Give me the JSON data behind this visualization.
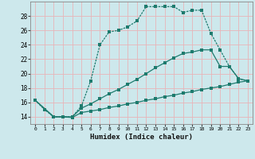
{
  "xlabel": "Humidex (Indice chaleur)",
  "xlim": [
    -0.5,
    23.5
  ],
  "ylim": [
    13.0,
    30.0
  ],
  "xticks": [
    0,
    1,
    2,
    3,
    4,
    5,
    6,
    7,
    8,
    9,
    10,
    11,
    12,
    13,
    14,
    15,
    16,
    17,
    18,
    19,
    20,
    21,
    22,
    23
  ],
  "yticks": [
    14,
    16,
    18,
    20,
    22,
    24,
    26,
    28
  ],
  "background_color": "#cde8ec",
  "grid_color": "#e8b4b8",
  "line_color": "#1e7b6e",
  "line1_x": [
    0,
    1,
    2,
    3,
    4,
    5,
    6,
    7,
    8,
    9,
    10,
    11,
    12,
    13,
    14,
    15,
    16,
    17,
    18,
    19,
    20,
    21,
    22,
    23
  ],
  "line1_y": [
    16.3,
    15.0,
    14.0,
    14.0,
    14.0,
    15.5,
    19.0,
    24.0,
    25.8,
    26.0,
    26.5,
    27.3,
    29.3,
    29.3,
    29.3,
    29.3,
    28.5,
    28.8,
    28.8,
    25.6,
    23.3,
    21.0,
    19.3,
    19.0
  ],
  "line2_x": [
    0,
    2,
    3,
    4,
    5,
    6,
    7,
    8,
    9,
    10,
    11,
    12,
    13,
    14,
    15,
    16,
    17,
    18,
    19,
    20,
    21,
    22,
    23
  ],
  "line2_y": [
    16.3,
    14.0,
    14.0,
    14.0,
    15.2,
    15.8,
    16.5,
    17.2,
    17.8,
    18.5,
    19.2,
    20.0,
    20.8,
    21.5,
    22.2,
    22.8,
    23.0,
    23.3,
    23.3,
    21.0,
    21.0,
    19.3,
    19.0
  ],
  "line3_x": [
    0,
    2,
    3,
    4,
    5,
    6,
    7,
    8,
    9,
    10,
    11,
    12,
    13,
    14,
    15,
    16,
    17,
    18,
    19,
    20,
    21,
    22,
    23
  ],
  "line3_y": [
    16.3,
    14.0,
    14.0,
    13.9,
    14.6,
    14.8,
    15.0,
    15.3,
    15.5,
    15.8,
    16.0,
    16.3,
    16.5,
    16.8,
    17.0,
    17.3,
    17.5,
    17.8,
    18.0,
    18.2,
    18.5,
    18.8,
    19.0
  ]
}
